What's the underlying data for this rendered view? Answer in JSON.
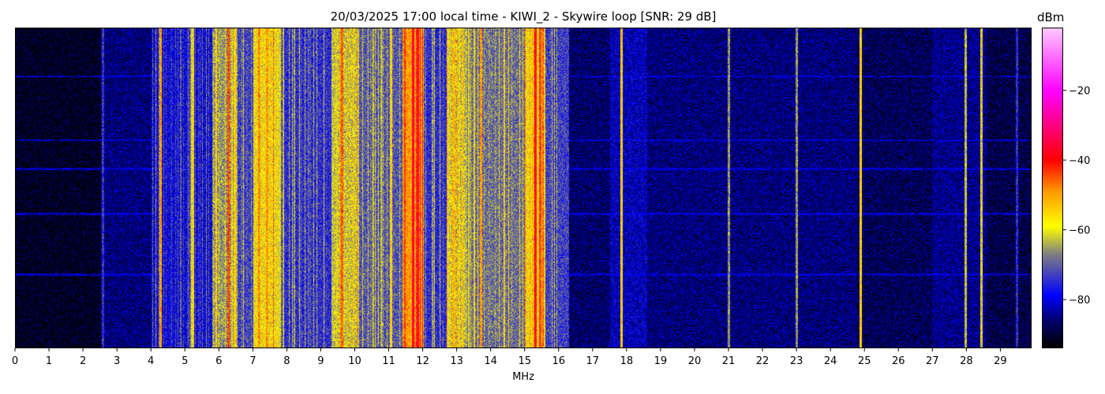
{
  "chart_data": {
    "type": "heatmap",
    "title": "20/03/2025 17:00 local time - KIWI_2 - Skywire loop [SNR: 29 dB]",
    "xlabel": "MHz",
    "ylabel": "",
    "xlim": [
      0,
      29.92
    ],
    "xticks": [
      0,
      1,
      2,
      3,
      4,
      5,
      6,
      7,
      8,
      9,
      10,
      11,
      12,
      13,
      14,
      15,
      16,
      17,
      18,
      19,
      20,
      21,
      22,
      23,
      24,
      25,
      26,
      27,
      28,
      29
    ],
    "colorbar": {
      "label": "dBm",
      "range": [
        -94,
        -2
      ],
      "ticks": [
        -20,
        -40,
        -60,
        -80
      ],
      "colormap": [
        {
          "dbm": -94,
          "color": "#000000"
        },
        {
          "dbm": -86,
          "color": "#000070"
        },
        {
          "dbm": -79,
          "color": "#0000ff"
        },
        {
          "dbm": -67,
          "color": "#808080"
        },
        {
          "dbm": -59,
          "color": "#ffff00"
        },
        {
          "dbm": -49,
          "color": "#ff9900"
        },
        {
          "dbm": -40,
          "color": "#ff0000"
        },
        {
          "dbm": -20,
          "color": "#ff00ff"
        },
        {
          "dbm": -2,
          "color": "#ffc8ff"
        }
      ]
    },
    "band_levels_dbm": [
      {
        "from": 0,
        "to": 2.5,
        "level": -92
      },
      {
        "from": 2.5,
        "to": 4,
        "level": -86
      },
      {
        "from": 4,
        "to": 5.8,
        "level": -79
      },
      {
        "from": 5.8,
        "to": 6.5,
        "level": -66
      },
      {
        "from": 6.5,
        "to": 7,
        "level": -73
      },
      {
        "from": 7,
        "to": 7.8,
        "level": -59
      },
      {
        "from": 7.8,
        "to": 9.3,
        "level": -75
      },
      {
        "from": 9.3,
        "to": 10.1,
        "level": -62
      },
      {
        "from": 10.1,
        "to": 11.4,
        "level": -71
      },
      {
        "from": 11.4,
        "to": 12,
        "level": -50
      },
      {
        "from": 12,
        "to": 12.7,
        "level": -75
      },
      {
        "from": 12.7,
        "to": 13.3,
        "level": -63
      },
      {
        "from": 13.3,
        "to": 15,
        "level": -69
      },
      {
        "from": 15,
        "to": 15.6,
        "level": -58
      },
      {
        "from": 15.6,
        "to": 16.3,
        "level": -73
      },
      {
        "from": 16.3,
        "to": 17.5,
        "level": -87
      },
      {
        "from": 17.5,
        "to": 18.6,
        "level": -82
      },
      {
        "from": 18.6,
        "to": 24.8,
        "level": -86
      },
      {
        "from": 24.8,
        "to": 27,
        "level": -88
      },
      {
        "from": 27,
        "to": 28.6,
        "level": -85
      },
      {
        "from": 28.6,
        "to": 29.92,
        "level": -89
      }
    ],
    "carriers": [
      {
        "mhz": 2.55,
        "dbm": -74
      },
      {
        "mhz": 4.25,
        "dbm": -50
      },
      {
        "mhz": 5.2,
        "dbm": -58
      },
      {
        "mhz": 6.25,
        "dbm": -44
      },
      {
        "mhz": 6.45,
        "dbm": -55
      },
      {
        "mhz": 7.4,
        "dbm": -50
      },
      {
        "mhz": 9.6,
        "dbm": -46
      },
      {
        "mhz": 11.05,
        "dbm": -56
      },
      {
        "mhz": 11.7,
        "dbm": -36
      },
      {
        "mhz": 11.85,
        "dbm": -38
      },
      {
        "mhz": 12.9,
        "dbm": -52
      },
      {
        "mhz": 13.7,
        "dbm": -50
      },
      {
        "mhz": 15.3,
        "dbm": -38
      },
      {
        "mhz": 15.45,
        "dbm": -43
      },
      {
        "mhz": 17.85,
        "dbm": -55
      },
      {
        "mhz": 21.0,
        "dbm": -66
      },
      {
        "mhz": 23.0,
        "dbm": -66
      },
      {
        "mhz": 24.9,
        "dbm": -56
      },
      {
        "mhz": 28.0,
        "dbm": -62
      },
      {
        "mhz": 28.45,
        "dbm": -60
      },
      {
        "mhz": 29.5,
        "dbm": -75
      }
    ]
  }
}
